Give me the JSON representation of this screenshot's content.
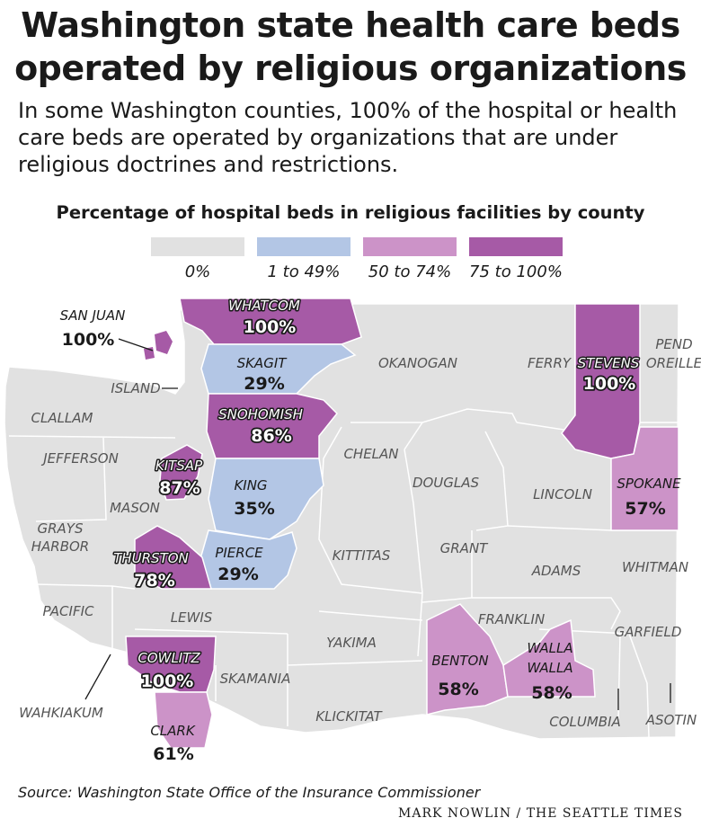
{
  "title_line1": "Washington state health care beds",
  "title_line2": "operated by religious organizations",
  "subtitle_line1": "In some Washington counties, 100% of the hospital or health",
  "subtitle_line2": "care beds are operated by organizations that are under",
  "subtitle_line3": "religious doctrines and restrictions.",
  "legend": {
    "title": "Percentage of hospital beds in religious facilities by county",
    "items": [
      {
        "label": "0%",
        "color": "#e1e1e1"
      },
      {
        "label": "1 to 49%",
        "color": "#b3c6e5"
      },
      {
        "label": "50 to 74%",
        "color": "#cc93c8"
      },
      {
        "label": "75 to 100%",
        "color": "#a65aa6"
      }
    ]
  },
  "map_data": {
    "shaded_counties": [
      {
        "county": "WHATCOM",
        "value": "100%",
        "category": "75 to 100%"
      },
      {
        "county": "SAN JUAN",
        "value": "100%",
        "category": "75 to 100%"
      },
      {
        "county": "SKAGIT",
        "value": "29%",
        "category": "1 to 49%"
      },
      {
        "county": "SNOHOMISH",
        "value": "86%",
        "category": "75 to 100%"
      },
      {
        "county": "KITSAP",
        "value": "87%",
        "category": "75 to 100%"
      },
      {
        "county": "KING",
        "value": "35%",
        "category": "1 to 49%"
      },
      {
        "county": "PIERCE",
        "value": "29%",
        "category": "1 to 49%"
      },
      {
        "county": "THURSTON",
        "value": "78%",
        "category": "75 to 100%"
      },
      {
        "county": "COWLITZ",
        "value": "100%",
        "category": "75 to 100%"
      },
      {
        "county": "CLARK",
        "value": "61%",
        "category": "50 to 74%"
      },
      {
        "county": "STEVENS",
        "value": "100%",
        "category": "75 to 100%"
      },
      {
        "county": "SPOKANE",
        "value": "57%",
        "category": "50 to 74%"
      },
      {
        "county": "BENTON",
        "value": "58%",
        "category": "50 to 74%"
      },
      {
        "county": "WALLA WALLA",
        "value": "58%",
        "category": "50 to 74%"
      }
    ],
    "unshaded_counties": [
      "ISLAND",
      "CLALLAM",
      "JEFFERSON",
      "MASON",
      "GRAYS HARBOR",
      "PACIFIC",
      "LEWIS",
      "WAHKIAKUM",
      "SKAMANIA",
      "KLICKITAT",
      "YAKIMA",
      "KITTITAS",
      "CHELAN",
      "OKANOGAN",
      "FERRY",
      "PEND OREILLE",
      "DOUGLAS",
      "GRANT",
      "LINCOLN",
      "ADAMS",
      "WHITMAN",
      "FRANKLIN",
      "GARFIELD",
      "COLUMBIA",
      "ASOTIN"
    ]
  },
  "source": "Source: Washington State Office of the Insurance Commissioner",
  "credit": "MARK NOWLIN / THE SEATTLE TIMES"
}
